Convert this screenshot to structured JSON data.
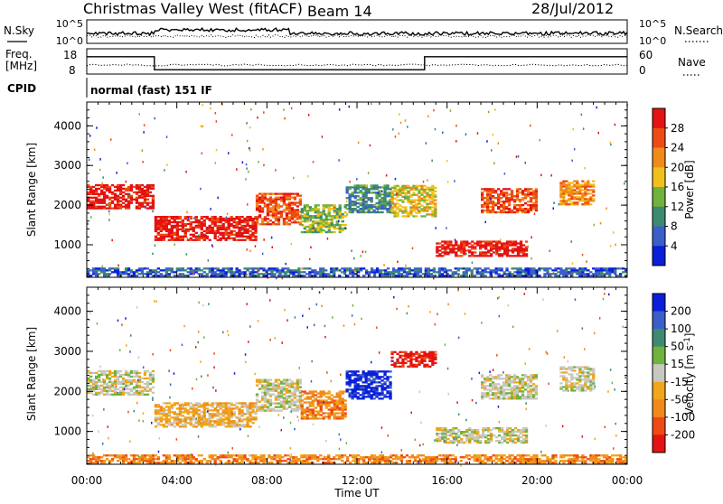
{
  "header": {
    "title": "Christmas Valley West (fitACF)",
    "beam": "Beam 14",
    "date": "28/Jul/2012"
  },
  "strip_nsky": {
    "left_label": "N.Sky",
    "right_label": "N.Search",
    "left_ticks": [
      "10^5",
      "10^0"
    ],
    "right_ticks": [
      "10^5",
      "10^0"
    ]
  },
  "strip_freq": {
    "left_label_1": "Freq.",
    "left_label_2": "[MHz]",
    "right_label": "Nave",
    "left_ticks": [
      "18",
      "8"
    ],
    "right_ticks": [
      "60",
      "0"
    ],
    "freq_steps": [
      {
        "start": 0.0,
        "end": 3.0,
        "mhz": 16
      },
      {
        "start": 3.0,
        "end": 15.0,
        "mhz": 10
      },
      {
        "start": 15.0,
        "end": 24.0,
        "mhz": 16
      }
    ]
  },
  "cpid": {
    "label": "CPID",
    "mode": "normal (fast) 151 IF"
  },
  "chart_data": [
    {
      "type": "heatmap",
      "ylabel": "Slant Range [km]",
      "xlabel": "Time UT",
      "xlim": [
        0,
        24
      ],
      "ylim": [
        180,
        4600
      ],
      "x_tick_labels": [
        "00:00",
        "04:00",
        "08:00",
        "12:00",
        "16:00",
        "20:00",
        "00:00"
      ],
      "y_ticks": [
        1000,
        2000,
        3000,
        4000
      ],
      "y_tick_labels": [
        "1000",
        "2000",
        "3000",
        "4000"
      ],
      "colorbar": {
        "label": "Power [dB]",
        "tick_labels": [
          "4",
          "8",
          "12",
          "16",
          "20",
          "24",
          "28"
        ],
        "colors": [
          "#0a1fd9",
          "#3a5fc8",
          "#3c8a70",
          "#6fb23e",
          "#f0c11a",
          "#f08a1a",
          "#ee4a14",
          "#e41212"
        ]
      },
      "regions": [
        {
          "t": [
            0.0,
            3.0
          ],
          "r": [
            1900,
            2500
          ],
          "level": 7
        },
        {
          "t": [
            3.0,
            7.5
          ],
          "r": [
            1100,
            1700
          ],
          "level": 7
        },
        {
          "t": [
            7.5,
            9.5
          ],
          "r": [
            1500,
            2300
          ],
          "level": 6
        },
        {
          "t": [
            9.5,
            11.5
          ],
          "r": [
            1300,
            2000
          ],
          "level": 3
        },
        {
          "t": [
            11.5,
            13.5
          ],
          "r": [
            1800,
            2500
          ],
          "level": 2
        },
        {
          "t": [
            13.5,
            15.5
          ],
          "r": [
            1700,
            2500
          ],
          "level": 4
        },
        {
          "t": [
            15.5,
            19.5
          ],
          "r": [
            700,
            1100
          ],
          "level": 7
        },
        {
          "t": [
            17.5,
            20.0
          ],
          "r": [
            1800,
            2400
          ],
          "level": 6
        },
        {
          "t": [
            21.0,
            22.5
          ],
          "r": [
            2000,
            2600
          ],
          "level": 5
        },
        {
          "t": [
            0.0,
            24.0
          ],
          "r": [
            200,
            400
          ],
          "level": 1
        }
      ]
    },
    {
      "type": "heatmap",
      "ylabel": "Slant Range [km]",
      "xlabel": "Time UT",
      "xlim": [
        0,
        24
      ],
      "ylim": [
        180,
        4600
      ],
      "x_tick_labels": [
        "00:00",
        "04:00",
        "08:00",
        "12:00",
        "16:00",
        "20:00",
        "00:00"
      ],
      "y_ticks": [
        1000,
        2000,
        3000,
        4000
      ],
      "y_tick_labels": [
        "1000",
        "2000",
        "3000",
        "4000"
      ],
      "colorbar": {
        "label": "Velocity [m s^-1]",
        "tick_labels": [
          "200",
          "100",
          "50",
          "15",
          "-15",
          "-50",
          "-100",
          "-200"
        ],
        "colors": [
          "#0a1fd9",
          "#3a5fc8",
          "#3c8a70",
          "#6fb23e",
          "#c8c8c0",
          "#f0a51a",
          "#f08a1a",
          "#ee4a14",
          "#e41212"
        ]
      },
      "regions": [
        {
          "t": [
            0.0,
            3.0
          ],
          "r": [
            1900,
            2500
          ],
          "level": 4
        },
        {
          "t": [
            3.0,
            7.5
          ],
          "r": [
            1100,
            1700
          ],
          "level": 5
        },
        {
          "t": [
            7.5,
            9.5
          ],
          "r": [
            1500,
            2300
          ],
          "level": 4
        },
        {
          "t": [
            9.5,
            11.5
          ],
          "r": [
            1300,
            2000
          ],
          "level": 6
        },
        {
          "t": [
            11.5,
            13.5
          ],
          "r": [
            1800,
            2500
          ],
          "level": 0
        },
        {
          "t": [
            13.5,
            15.5
          ],
          "r": [
            2600,
            3000
          ],
          "level": 8
        },
        {
          "t": [
            15.5,
            19.5
          ],
          "r": [
            700,
            1100
          ],
          "level": 4
        },
        {
          "t": [
            17.5,
            20.0
          ],
          "r": [
            1800,
            2400
          ],
          "level": 4
        },
        {
          "t": [
            21.0,
            22.5
          ],
          "r": [
            2000,
            2600
          ],
          "level": 4
        },
        {
          "t": [
            0.0,
            24.0
          ],
          "r": [
            200,
            400
          ],
          "level": 6
        }
      ]
    }
  ]
}
